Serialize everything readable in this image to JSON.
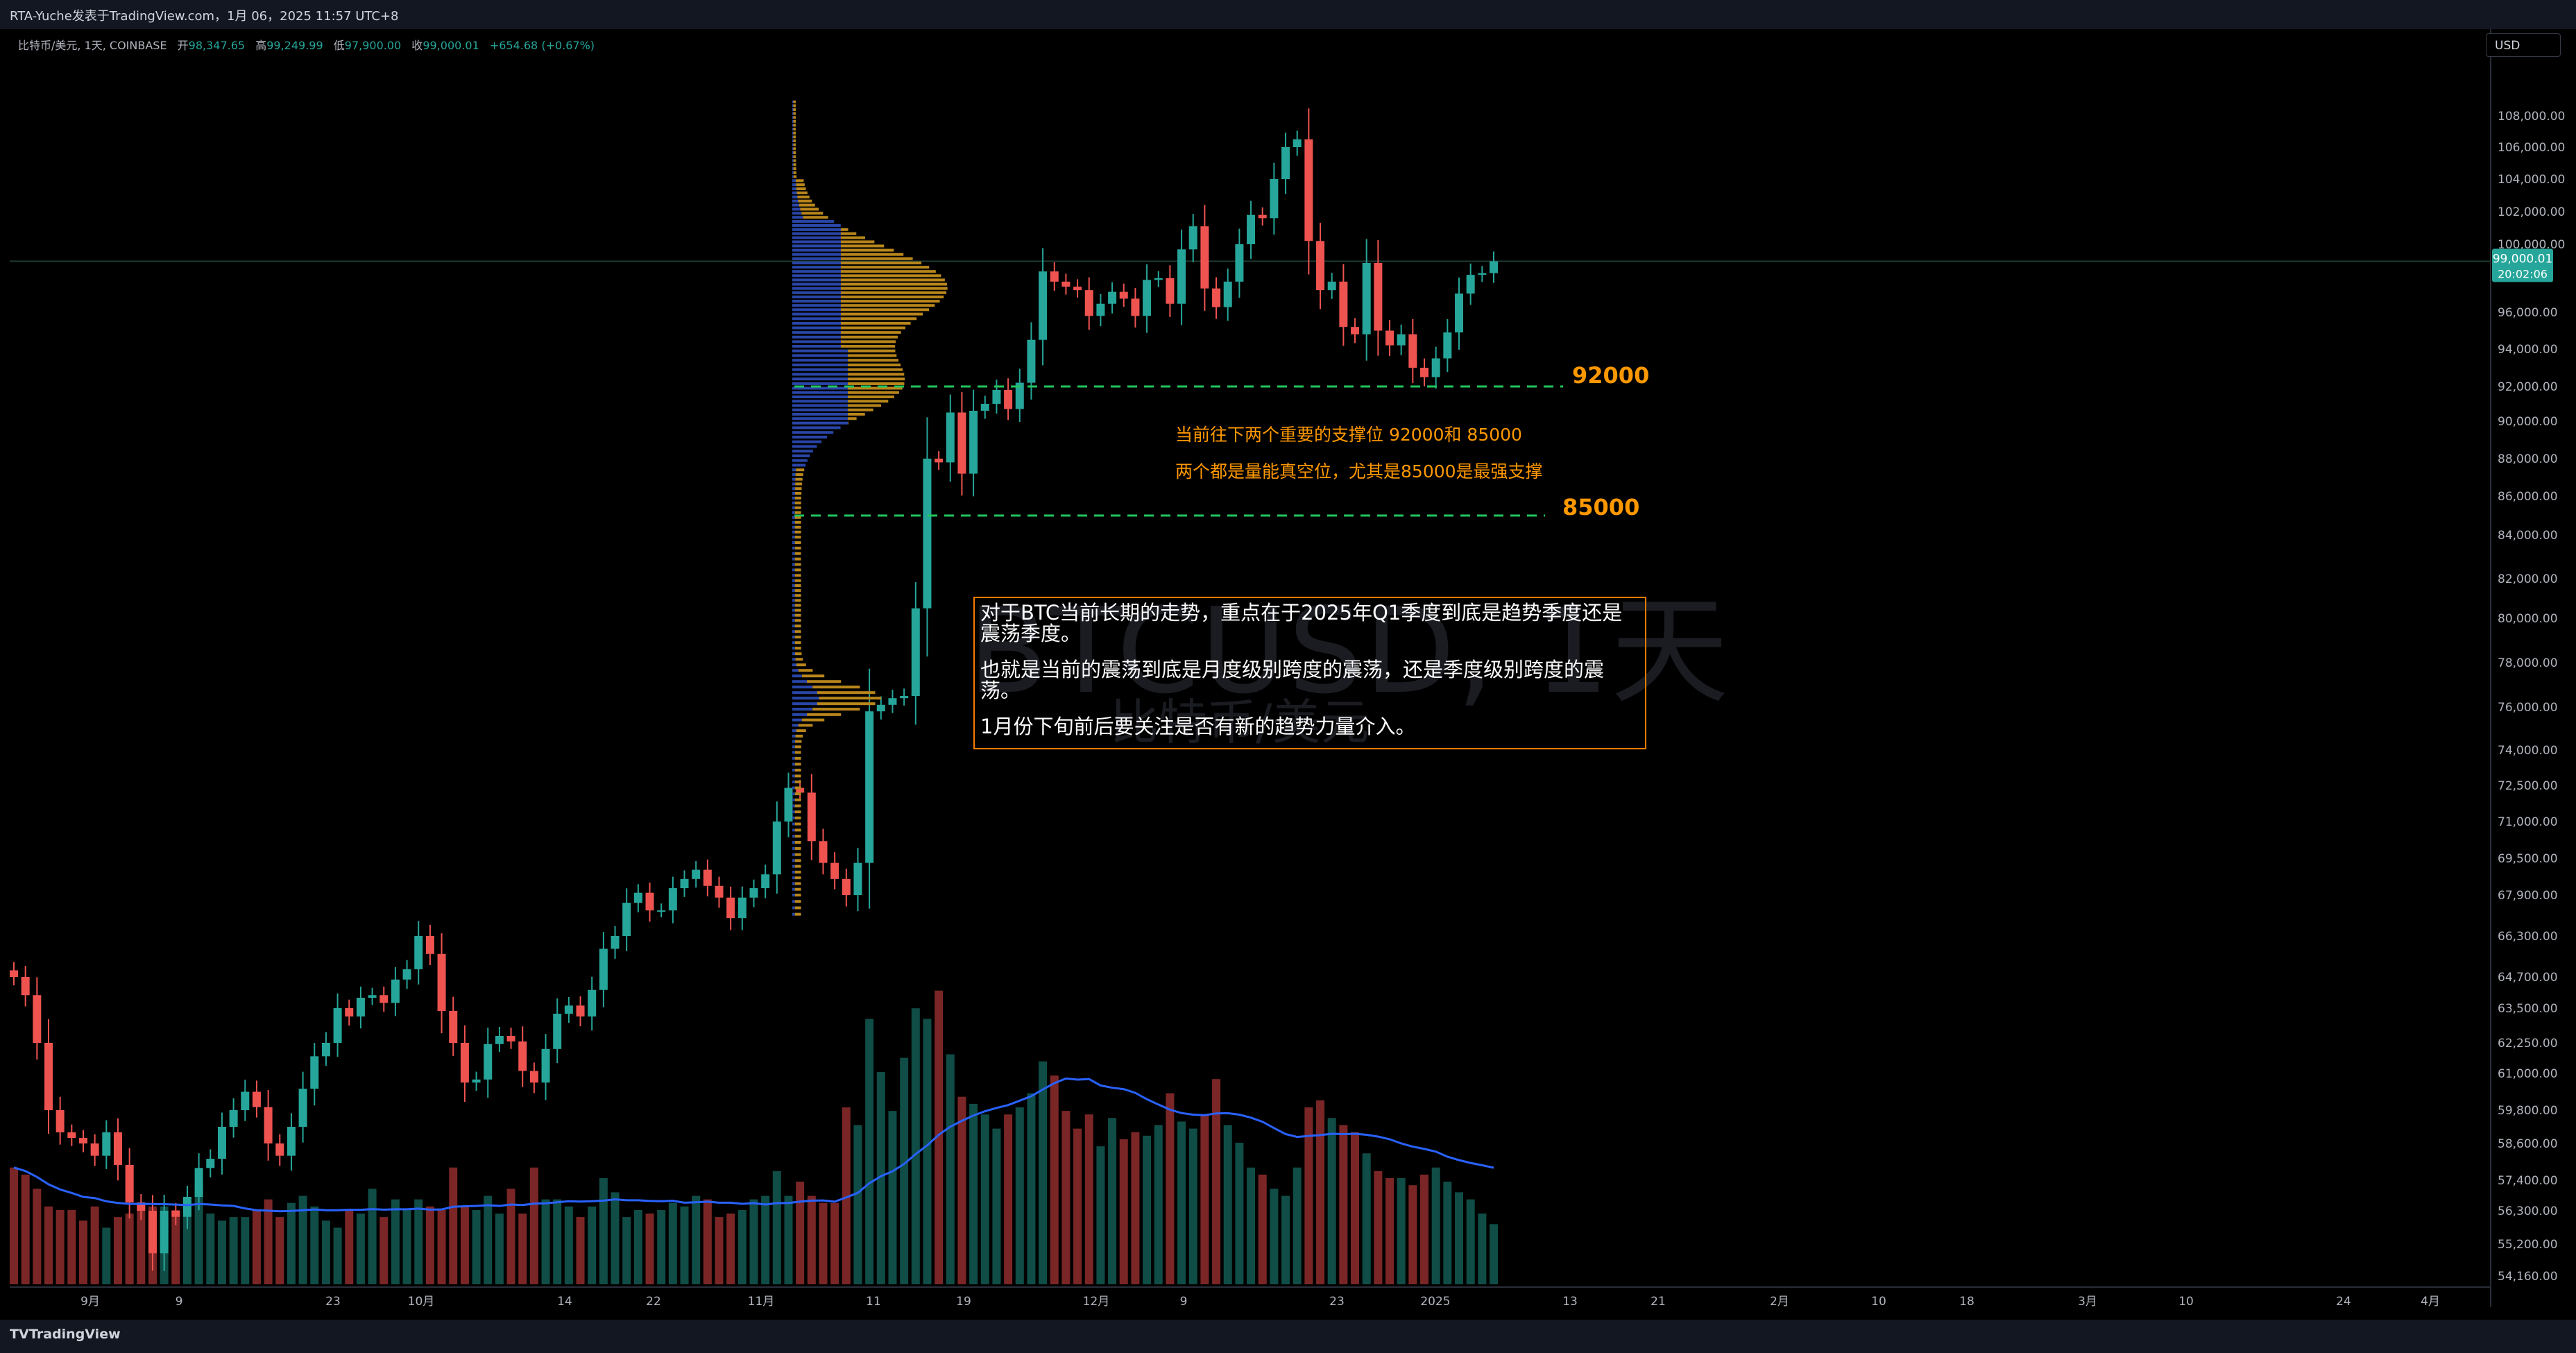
{
  "header": {
    "title": "RTA-Yuche发表于TradingView.com，1月 06，2025 11:57 UTC+8"
  },
  "legend": {
    "symbol": "比特币/美元, 1天, COINBASE",
    "open_label": "开",
    "open": "98,347.65",
    "high_label": "高",
    "high": "99,249.99",
    "low_label": "低",
    "low": "97,900.00",
    "close_label": "收",
    "close": "99,000.01",
    "change": "+654.68 (+0.67%)"
  },
  "currency": "USD",
  "watermark": {
    "symbol": "BTCUSD, 1天",
    "name": "比特币/美元"
  },
  "price_badge": {
    "price": "99,000.01",
    "countdown": "20:02:06"
  },
  "annotations": {
    "level_92000": "92000",
    "level_85000": "85000",
    "note_line1": "当前往下两个重要的支撑位  92000和 85000",
    "note_line2": "两个都是量能真空位，尤其是85000是最强支撑",
    "box_para1": "对于BTC当前长期的走势，重点在于2025年Q1季度到底是趋势季度还是震荡季度。",
    "box_para2": "也就是当前的震荡到底是月度级别跨度的震荡，还是季度级别跨度的震荡。",
    "box_para3": "1月份下旬前后要关注是否有新的趋势力量介入。"
  },
  "footer": {
    "brand": "TradingView"
  },
  "colors": {
    "up": "#26a69a",
    "down": "#ef5350",
    "vol_up": "#0f4d46",
    "vol_down": "#7b2626",
    "ma": "#2962ff",
    "accent": "#ff9800",
    "vp_blue": "#2946a8",
    "vp_gold": "#b8861b"
  },
  "chart_data": {
    "type": "candlestick",
    "symbol": "BTCUSD",
    "interval": "1天",
    "y_ticks": [
      108000,
      106000,
      104000,
      102000,
      100000,
      96000,
      94000,
      92000,
      90000,
      88000,
      86000,
      84000,
      82000,
      80000,
      78000,
      76000,
      74000,
      72500,
      71000,
      69500,
      67900,
      66300,
      64700,
      63500,
      62250,
      61000,
      59800,
      58600,
      57400,
      56300,
      55200,
      54160
    ],
    "y_tick_labels": [
      "108,000.00",
      "106,000.00",
      "104,000.00",
      "102,000.00",
      "100,000.00",
      "96,000.00",
      "94,000.00",
      "92,000.00",
      "90,000.00",
      "88,000.00",
      "86,000.00",
      "84,000.00",
      "82,000.00",
      "80,000.00",
      "78,000.00",
      "76,000.00",
      "74,000.00",
      "72,500.00",
      "71,000.00",
      "69,500.00",
      "67,900.00",
      "66,300.00",
      "64,700.00",
      "63,500.00",
      "62,250.00",
      "61,000.00",
      "59,800.00",
      "58,600.00",
      "57,400.00",
      "56,300.00",
      "55,200.00",
      "54,160.00"
    ],
    "x_tick_labels": [
      "9月",
      "9",
      "23",
      "10月",
      "14",
      "22",
      "11月",
      "11",
      "19",
      "12月",
      "9",
      "23",
      "2025",
      "13",
      "21",
      "2月",
      "10",
      "18",
      "3月",
      "10",
      "24",
      "4月"
    ],
    "horizontal_levels": [
      92000,
      85000
    ],
    "last_price": 99000.01,
    "closes": [
      64700,
      64000,
      62250,
      59800,
      59000,
      58800,
      58600,
      58200,
      59000,
      57900,
      56600,
      56300,
      54900,
      56300,
      56100,
      56800,
      57800,
      58100,
      59200,
      59800,
      60400,
      59900,
      58600,
      58200,
      59200,
      60500,
      61700,
      62250,
      63500,
      63200,
      63900,
      64000,
      63700,
      64600,
      65000,
      66300,
      65600,
      63400,
      62250,
      60700,
      60800,
      62200,
      62500,
      62300,
      61100,
      60700,
      62000,
      63300,
      63600,
      63200,
      64200,
      65800,
      66300,
      67600,
      68000,
      67300,
      67300,
      68200,
      68600,
      69000,
      68300,
      67800,
      67000,
      67800,
      68200,
      68800,
      71000,
      72400,
      72200,
      70200,
      69300,
      68600,
      67900,
      69300,
      75800,
      76100,
      76400,
      76500,
      80500,
      88000,
      87800,
      90500,
      87200,
      90600,
      91000,
      91800,
      90700,
      92200,
      94500,
      98400,
      97800,
      97500,
      97300,
      95800,
      96500,
      97200,
      96800,
      95800,
      97900,
      98000,
      96500,
      99700,
      101100,
      97400,
      96300,
      97800,
      100000,
      101800,
      101600,
      104000,
      106000,
      106500,
      100200,
      97300,
      97800,
      95200,
      94800,
      98900,
      95000,
      94200,
      94800,
      93000,
      92500,
      93500,
      94900,
      97100,
      98200,
      98300,
      99000
    ],
    "volume_relative": [
      0.33,
      0.31,
      0.27,
      0.22,
      0.21,
      0.21,
      0.18,
      0.22,
      0.16,
      0.19,
      0.2,
      0.23,
      0.22,
      0.22,
      0.21,
      0.2,
      0.28,
      0.2,
      0.18,
      0.19,
      0.19,
      0.21,
      0.24,
      0.19,
      0.23,
      0.25,
      0.22,
      0.18,
      0.16,
      0.21,
      0.2,
      0.27,
      0.19,
      0.24,
      0.21,
      0.24,
      0.22,
      0.21,
      0.33,
      0.22,
      0.21,
      0.25,
      0.2,
      0.27,
      0.2,
      0.33,
      0.24,
      0.24,
      0.22,
      0.19,
      0.22,
      0.3,
      0.26,
      0.19,
      0.21,
      0.2,
      0.21,
      0.23,
      0.22,
      0.25,
      0.24,
      0.19,
      0.2,
      0.21,
      0.24,
      0.25,
      0.32,
      0.25,
      0.29,
      0.25,
      0.23,
      0.23,
      0.5,
      0.45,
      0.75,
      0.6,
      0.49,
      0.64,
      0.78,
      0.75,
      0.83,
      0.65,
      0.53,
      0.51,
      0.48,
      0.44,
      0.48,
      0.5,
      0.54,
      0.63,
      0.59,
      0.49,
      0.44,
      0.48,
      0.39,
      0.47,
      0.41,
      0.43,
      0.42,
      0.45,
      0.54,
      0.46,
      0.44,
      0.48,
      0.58,
      0.45,
      0.4,
      0.33,
      0.31,
      0.27,
      0.25,
      0.33,
      0.5,
      0.52,
      0.47,
      0.45,
      0.43,
      0.37,
      0.32,
      0.3,
      0.3,
      0.28,
      0.31,
      0.33,
      0.29,
      0.26,
      0.24,
      0.2,
      0.17
    ]
  }
}
